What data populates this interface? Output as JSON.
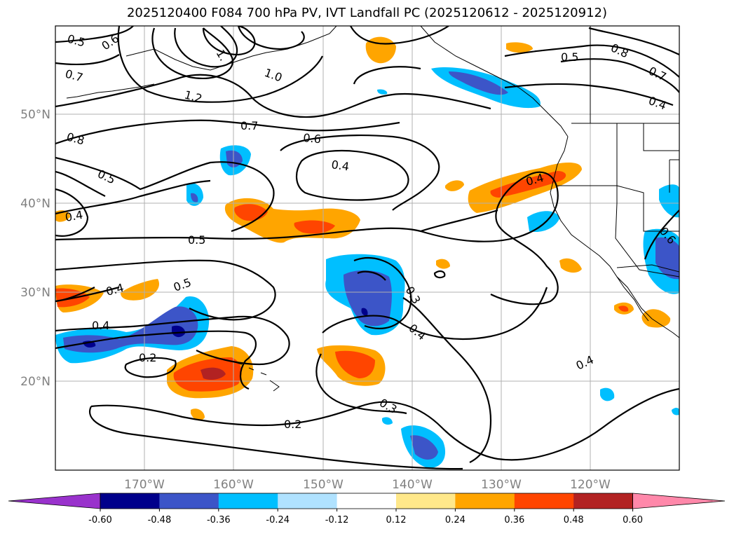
{
  "title": "2025120400 F084 700 hPa PV, IVT Landfall PC (2025120612 - 2025120912)",
  "map": {
    "lat_labels": [
      "50°N",
      "40°N",
      "30°N",
      "20°N"
    ],
    "lon_labels": [
      "170°W",
      "160°W",
      "150°W",
      "140°W",
      "130°W",
      "120°W"
    ],
    "gridlines": true,
    "contour_color": "#000000",
    "coastline_color": "#000000"
  },
  "colorbar": {
    "colors": [
      "#9932cc",
      "#00008b",
      "#3c55c8",
      "#00bfff",
      "#b0e2ff",
      "#ffffff",
      "#ffe88a",
      "#ffa500",
      "#ff4500",
      "#b22222",
      "#ff88aa"
    ],
    "tick_labels": [
      "-0.60",
      "-0.48",
      "-0.36",
      "-0.24",
      "-0.12",
      "0.12",
      "0.24",
      "0.36",
      "0.48",
      "0.60"
    ],
    "extend": "both"
  },
  "contour_labels": [
    "0.5",
    "0.6",
    "0.7",
    "1.",
    "1.0",
    "1.2",
    "0.8",
    "0.5",
    "0.7",
    "0.6",
    "0.4",
    "0.4",
    "0.5",
    "0.4",
    "0.5",
    "0.4",
    "0.2",
    "0.3",
    "0.4",
    "0.3",
    "0.2",
    "0.4",
    "0.4",
    "0.5",
    "0.8",
    "0.7",
    "0.4",
    "0.6"
  ]
}
